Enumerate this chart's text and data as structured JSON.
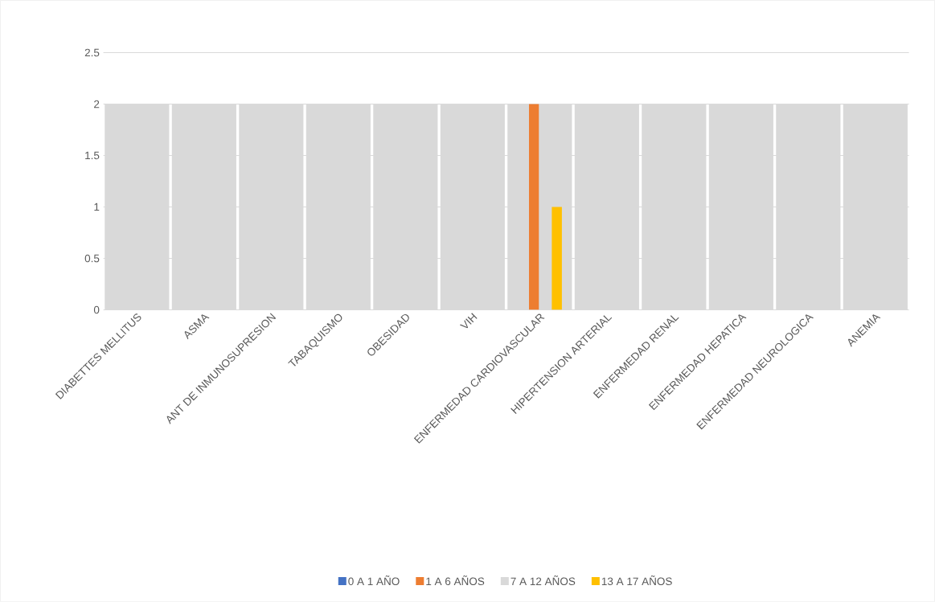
{
  "chart_data": {
    "type": "bar",
    "categories": [
      "DIABETTES MELLITUS",
      "ASMA",
      "ANT DE INMUNOSUPRESION",
      "TABAQUISMO",
      "OBESIDAD",
      "VIH",
      "ENFERMEDAD CARDIOVASCULAR",
      "HIPERTENSION ARTERIAL",
      "ENFERMEDAD RENAL",
      "ENFERMEDAD HEPATICA",
      "ENFERMEDAD NEUROLOGICA",
      "ANEMIA"
    ],
    "series": [
      {
        "name": "0 A 1 AÑO",
        "color": "#4472c4",
        "values": [
          null,
          null,
          null,
          null,
          null,
          null,
          null,
          null,
          null,
          null,
          null,
          null
        ]
      },
      {
        "name": "1 A 6 AÑOS",
        "color": "#ed7d31",
        "values": [
          null,
          null,
          null,
          null,
          null,
          null,
          2,
          null,
          null,
          null,
          null,
          null
        ]
      },
      {
        "name": "7 A 12 AÑOS",
        "color": "#d9d9d9",
        "values": [
          2,
          2,
          2,
          2,
          2,
          2,
          2,
          2,
          2,
          2,
          2,
          2
        ]
      },
      {
        "name": "13 A 17 AÑOS",
        "color": "#ffc000",
        "values": [
          null,
          null,
          null,
          null,
          null,
          null,
          1,
          null,
          null,
          null,
          null,
          null
        ]
      }
    ],
    "ylim": [
      0,
      2.5
    ],
    "yticks": [
      0,
      0.5,
      1,
      1.5,
      2,
      2.5
    ],
    "grid": "y",
    "legend": "bottom"
  }
}
